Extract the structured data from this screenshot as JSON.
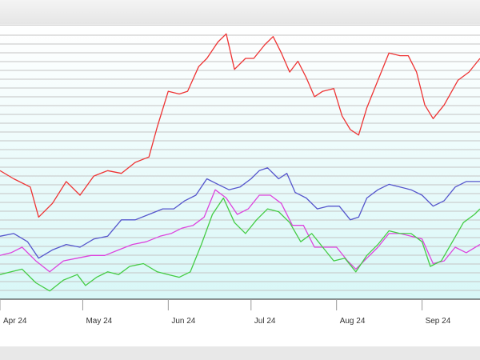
{
  "chart_data": {
    "type": "line",
    "title": "",
    "xlabel": "",
    "ylabel": "",
    "x_range": [
      "2024-04-01",
      "2024-09-22"
    ],
    "ylim": [
      0,
      100
    ],
    "grid": true,
    "legend": "none",
    "x_ticks": [
      {
        "date": "2024-04-01",
        "label": "Apr 24"
      },
      {
        "date": "2024-05-01",
        "label": "May 24"
      },
      {
        "date": "2024-06-01",
        "label": "Jun 24"
      },
      {
        "date": "2024-07-01",
        "label": "Jul 24"
      },
      {
        "date": "2024-08-01",
        "label": "Aug 24"
      },
      {
        "date": "2024-09-01",
        "label": "Sep 24"
      }
    ],
    "series": [
      {
        "color": "#ee3333",
        "points": [
          [
            "2024-04-01",
            47
          ],
          [
            "2024-04-06",
            44
          ],
          [
            "2024-04-12",
            41
          ],
          [
            "2024-04-15",
            30
          ],
          [
            "2024-04-20",
            35
          ],
          [
            "2024-04-25",
            43
          ],
          [
            "2024-04-30",
            38
          ],
          [
            "2024-05-05",
            45
          ],
          [
            "2024-05-10",
            47
          ],
          [
            "2024-05-15",
            46
          ],
          [
            "2024-05-20",
            50
          ],
          [
            "2024-05-25",
            52
          ],
          [
            "2024-05-28",
            63
          ],
          [
            "2024-06-01",
            76
          ],
          [
            "2024-06-05",
            75
          ],
          [
            "2024-06-08",
            76
          ],
          [
            "2024-06-12",
            85
          ],
          [
            "2024-06-15",
            88
          ],
          [
            "2024-06-19",
            94
          ],
          [
            "2024-06-22",
            97
          ],
          [
            "2024-06-25",
            84
          ],
          [
            "2024-06-29",
            88
          ],
          [
            "2024-07-02",
            88
          ],
          [
            "2024-07-06",
            93
          ],
          [
            "2024-07-09",
            96
          ],
          [
            "2024-07-12",
            90
          ],
          [
            "2024-07-15",
            83
          ],
          [
            "2024-07-18",
            87
          ],
          [
            "2024-07-21",
            81
          ],
          [
            "2024-07-24",
            74
          ],
          [
            "2024-07-27",
            76
          ],
          [
            "2024-07-31",
            77
          ],
          [
            "2024-08-03",
            67
          ],
          [
            "2024-08-06",
            62
          ],
          [
            "2024-08-09",
            60
          ],
          [
            "2024-08-12",
            70
          ],
          [
            "2024-08-16",
            80
          ],
          [
            "2024-08-20",
            90
          ],
          [
            "2024-08-24",
            89
          ],
          [
            "2024-08-27",
            89
          ],
          [
            "2024-08-30",
            83
          ],
          [
            "2024-09-02",
            71
          ],
          [
            "2024-09-05",
            66
          ],
          [
            "2024-09-09",
            71
          ],
          [
            "2024-09-14",
            80
          ],
          [
            "2024-09-18",
            83
          ],
          [
            "2024-09-22",
            88
          ]
        ]
      },
      {
        "color": "#5555cc",
        "points": [
          [
            "2024-04-01",
            23
          ],
          [
            "2024-04-06",
            24
          ],
          [
            "2024-04-11",
            21
          ],
          [
            "2024-04-15",
            15
          ],
          [
            "2024-04-20",
            18
          ],
          [
            "2024-04-25",
            20
          ],
          [
            "2024-04-30",
            19
          ],
          [
            "2024-05-05",
            22
          ],
          [
            "2024-05-10",
            23
          ],
          [
            "2024-05-15",
            29
          ],
          [
            "2024-05-20",
            29
          ],
          [
            "2024-05-25",
            31
          ],
          [
            "2024-05-30",
            33
          ],
          [
            "2024-06-03",
            33
          ],
          [
            "2024-06-07",
            36
          ],
          [
            "2024-06-11",
            38
          ],
          [
            "2024-06-15",
            44
          ],
          [
            "2024-06-19",
            42
          ],
          [
            "2024-06-23",
            40
          ],
          [
            "2024-06-27",
            41
          ],
          [
            "2024-07-01",
            44
          ],
          [
            "2024-07-04",
            47
          ],
          [
            "2024-07-07",
            48
          ],
          [
            "2024-07-11",
            44
          ],
          [
            "2024-07-14",
            46
          ],
          [
            "2024-07-17",
            39
          ],
          [
            "2024-07-21",
            37
          ],
          [
            "2024-07-25",
            33
          ],
          [
            "2024-07-29",
            34
          ],
          [
            "2024-08-02",
            34
          ],
          [
            "2024-08-06",
            29
          ],
          [
            "2024-08-09",
            30
          ],
          [
            "2024-08-12",
            37
          ],
          [
            "2024-08-16",
            40
          ],
          [
            "2024-08-20",
            42
          ],
          [
            "2024-08-24",
            41
          ],
          [
            "2024-08-28",
            40
          ],
          [
            "2024-09-01",
            38
          ],
          [
            "2024-09-05",
            34
          ],
          [
            "2024-09-09",
            36
          ],
          [
            "2024-09-13",
            41
          ],
          [
            "2024-09-17",
            43
          ],
          [
            "2024-09-22",
            43
          ]
        ]
      },
      {
        "color": "#dd44dd",
        "points": [
          [
            "2024-04-01",
            16
          ],
          [
            "2024-04-05",
            17
          ],
          [
            "2024-04-09",
            19
          ],
          [
            "2024-04-14",
            14
          ],
          [
            "2024-04-19",
            10
          ],
          [
            "2024-04-24",
            14
          ],
          [
            "2024-04-29",
            15
          ],
          [
            "2024-05-04",
            16
          ],
          [
            "2024-05-09",
            16
          ],
          [
            "2024-05-14",
            18
          ],
          [
            "2024-05-19",
            20
          ],
          [
            "2024-05-24",
            21
          ],
          [
            "2024-05-29",
            23
          ],
          [
            "2024-06-02",
            24
          ],
          [
            "2024-06-06",
            26
          ],
          [
            "2024-06-10",
            27
          ],
          [
            "2024-06-14",
            30
          ],
          [
            "2024-06-18",
            40
          ],
          [
            "2024-06-22",
            37
          ],
          [
            "2024-06-26",
            31
          ],
          [
            "2024-06-30",
            33
          ],
          [
            "2024-07-04",
            38
          ],
          [
            "2024-07-08",
            38
          ],
          [
            "2024-07-12",
            35
          ],
          [
            "2024-07-16",
            27
          ],
          [
            "2024-07-20",
            27
          ],
          [
            "2024-07-24",
            19
          ],
          [
            "2024-07-28",
            19
          ],
          [
            "2024-08-01",
            19
          ],
          [
            "2024-08-05",
            14
          ],
          [
            "2024-08-08",
            11
          ],
          [
            "2024-08-12",
            15
          ],
          [
            "2024-08-16",
            19
          ],
          [
            "2024-08-20",
            24
          ],
          [
            "2024-08-24",
            24
          ],
          [
            "2024-08-28",
            23
          ],
          [
            "2024-09-01",
            22
          ],
          [
            "2024-09-05",
            13
          ],
          [
            "2024-09-09",
            14
          ],
          [
            "2024-09-13",
            19
          ],
          [
            "2024-09-17",
            17
          ],
          [
            "2024-09-22",
            20
          ]
        ]
      },
      {
        "color": "#44cc44",
        "points": [
          [
            "2024-04-01",
            9
          ],
          [
            "2024-04-05",
            10
          ],
          [
            "2024-04-09",
            11
          ],
          [
            "2024-04-14",
            6
          ],
          [
            "2024-04-19",
            3
          ],
          [
            "2024-04-24",
            7
          ],
          [
            "2024-04-29",
            9
          ],
          [
            "2024-05-02",
            5
          ],
          [
            "2024-05-06",
            8
          ],
          [
            "2024-05-10",
            10
          ],
          [
            "2024-05-14",
            9
          ],
          [
            "2024-05-18",
            12
          ],
          [
            "2024-05-23",
            13
          ],
          [
            "2024-05-28",
            10
          ],
          [
            "2024-06-01",
            9
          ],
          [
            "2024-06-05",
            8
          ],
          [
            "2024-06-09",
            10
          ],
          [
            "2024-06-13",
            20
          ],
          [
            "2024-06-17",
            31
          ],
          [
            "2024-06-21",
            37
          ],
          [
            "2024-06-25",
            28
          ],
          [
            "2024-06-29",
            24
          ],
          [
            "2024-07-03",
            29
          ],
          [
            "2024-07-07",
            33
          ],
          [
            "2024-07-11",
            32
          ],
          [
            "2024-07-15",
            28
          ],
          [
            "2024-07-19",
            21
          ],
          [
            "2024-07-23",
            24
          ],
          [
            "2024-07-27",
            19
          ],
          [
            "2024-07-31",
            14
          ],
          [
            "2024-08-04",
            15
          ],
          [
            "2024-08-08",
            10
          ],
          [
            "2024-08-12",
            16
          ],
          [
            "2024-08-16",
            20
          ],
          [
            "2024-08-20",
            25
          ],
          [
            "2024-08-24",
            24
          ],
          [
            "2024-08-28",
            24
          ],
          [
            "2024-09-01",
            21
          ],
          [
            "2024-09-04",
            12
          ],
          [
            "2024-09-08",
            14
          ],
          [
            "2024-09-12",
            21
          ],
          [
            "2024-09-16",
            28
          ],
          [
            "2024-09-20",
            31
          ],
          [
            "2024-09-22",
            33
          ]
        ]
      }
    ]
  }
}
